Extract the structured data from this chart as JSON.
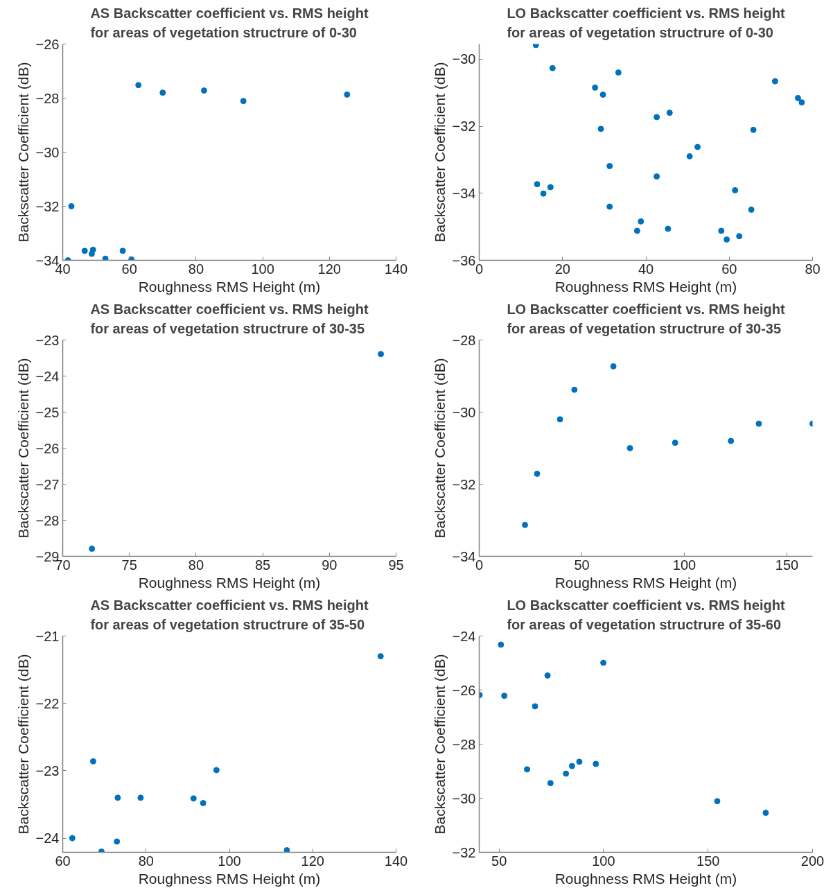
{
  "chart_data": [
    {
      "type": "scatter",
      "title": "AS Backscatter coefficient vs. RMS height\nfor areas of vegetation structrure of 0-30",
      "xlabel": "Roughness RMS Height (m)",
      "ylabel": "Backscatter Coefficient (dB)",
      "color": "#0072bd",
      "marker": "circle",
      "grid": false,
      "x": [
        41.6,
        42.6,
        46.6,
        49.1,
        48.7,
        52.8,
        58.0,
        60.6,
        62.7,
        70.0,
        82.4,
        94.2,
        125.3
      ],
      "values": [
        -34.0,
        -32.0,
        -33.65,
        -33.61,
        -33.76,
        -33.94,
        -33.65,
        -33.97,
        -27.52,
        -27.8,
        -27.72,
        -28.11,
        -27.87
      ],
      "xlim": [
        40,
        140
      ],
      "ylim": [
        -34,
        -26
      ],
      "xticks": [
        40,
        60,
        80,
        100,
        120,
        140
      ],
      "yticks": [
        -34,
        -32,
        -30,
        -28,
        -26
      ]
    },
    {
      "type": "scatter",
      "title": "LO Backscatter coefficient vs. RMS height\nfor areas of vegetation structrure of 0-30",
      "xlabel": "Roughness RMS Height (m)",
      "ylabel": "Backscatter Coefficient (dB)",
      "color": "#0072bd",
      "marker": "circle",
      "grid": false,
      "x": [
        13.6,
        17.6,
        27.8,
        29.7,
        33.4,
        29.2,
        31.3,
        31.3,
        13.9,
        15.4,
        17.1,
        42.6,
        45.7,
        42.6,
        37.9,
        38.8,
        45.3,
        50.5,
        52.4,
        65.8,
        61.4,
        65.3,
        58.1,
        59.4,
        62.4,
        71.0,
        76.5,
        77.4
      ],
      "values": [
        -29.58,
        -30.27,
        -30.85,
        -31.06,
        -30.4,
        -32.08,
        -33.19,
        -34.4,
        -33.73,
        -34.01,
        -33.82,
        -31.73,
        -31.6,
        -33.5,
        -35.12,
        -34.84,
        -35.06,
        -32.9,
        -32.62,
        -32.11,
        -33.91,
        -34.49,
        -35.12,
        -35.38,
        -35.28,
        -30.66,
        -31.16,
        -31.29
      ],
      "xlim": [
        0,
        80
      ],
      "ylim": [
        -36,
        -29.55
      ],
      "xticks": [
        0,
        20,
        40,
        60,
        80
      ],
      "yticks": [
        -36,
        -34,
        -32,
        -30
      ]
    },
    {
      "type": "scatter",
      "title": "AS Backscatter coefficient vs. RMS height\nfor areas of vegetation structrure of 30-35",
      "xlabel": "Roughness RMS Height (m)",
      "ylabel": "Backscatter Coefficient (dB)",
      "color": "#0072bd",
      "marker": "circle",
      "grid": false,
      "x": [
        72.19,
        93.86
      ],
      "values": [
        -28.79,
        -23.39
      ],
      "xlim": [
        70,
        95
      ],
      "ylim": [
        -29,
        -23
      ],
      "xticks": [
        70,
        75,
        80,
        85,
        90,
        95
      ],
      "yticks": [
        -29,
        -28,
        -27,
        -26,
        -25,
        -24,
        -23
      ]
    },
    {
      "type": "scatter",
      "title": "LO Backscatter coefficient vs. RMS height\nfor areas of vegetation structrure of 30-35",
      "xlabel": "Roughness RMS Height (m)",
      "ylabel": "Backscatter Coefficient (dB)",
      "color": "#0072bd",
      "marker": "circle",
      "grid": false,
      "x": [
        22.3,
        28.2,
        39.4,
        46.4,
        65.4,
        73.5,
        95.5,
        122.7,
        136.3,
        162.5
      ],
      "values": [
        -33.13,
        -31.71,
        -30.2,
        -29.38,
        -28.73,
        -31.0,
        -30.85,
        -30.8,
        -30.32,
        -30.32
      ],
      "xlim": [
        0,
        162.5
      ],
      "ylim": [
        -34,
        -28
      ],
      "xticks": [
        0,
        50,
        100,
        150
      ],
      "yticks": [
        -34,
        -32,
        -30,
        -28
      ]
    },
    {
      "type": "scatter",
      "title": "AS Backscatter coefficient vs. RMS height\nfor areas of vegetation structrure of 35-50",
      "xlabel": "Roughness RMS Height (m)",
      "ylabel": "Backscatter Coefficient (dB)",
      "color": "#0072bd",
      "marker": "circle",
      "grid": false,
      "x": [
        62.3,
        67.3,
        69.3,
        73.2,
        73.0,
        78.7,
        91.4,
        93.7,
        96.9,
        113.8,
        136.3
      ],
      "values": [
        -24.0,
        -22.86,
        -24.2,
        -23.4,
        -24.05,
        -23.4,
        -23.41,
        -23.48,
        -22.99,
        -24.18,
        -21.3
      ],
      "xlim": [
        60,
        140
      ],
      "ylim": [
        -24.21,
        -21
      ],
      "xticks": [
        60,
        80,
        100,
        120,
        140
      ],
      "yticks": [
        -24,
        -23,
        -22,
        -21
      ]
    },
    {
      "type": "scatter",
      "title": "LO Backscatter coefficient vs. RMS height\nfor areas of vegetation structrure of 35-60",
      "xlabel": "Roughness RMS Height (m)",
      "ylabel": "Backscatter Coefficient (dB)",
      "color": "#0072bd",
      "marker": "circle",
      "grid": false,
      "x": [
        40.7,
        50.9,
        52.5,
        63.4,
        67.2,
        73.2,
        74.6,
        82.0,
        84.9,
        88.4,
        96.3,
        99.9,
        154.4,
        177.6
      ],
      "values": [
        -26.18,
        -24.32,
        -26.21,
        -28.93,
        -26.6,
        -25.46,
        -29.44,
        -29.09,
        -28.81,
        -28.65,
        -28.73,
        -24.99,
        -30.11,
        -30.54
      ],
      "xlim": [
        40.5,
        200
      ],
      "ylim": [
        -32,
        -24
      ],
      "xticks": [
        50,
        100,
        150,
        200
      ],
      "yticks": [
        -32,
        -30,
        -28,
        -26,
        -24
      ]
    }
  ]
}
